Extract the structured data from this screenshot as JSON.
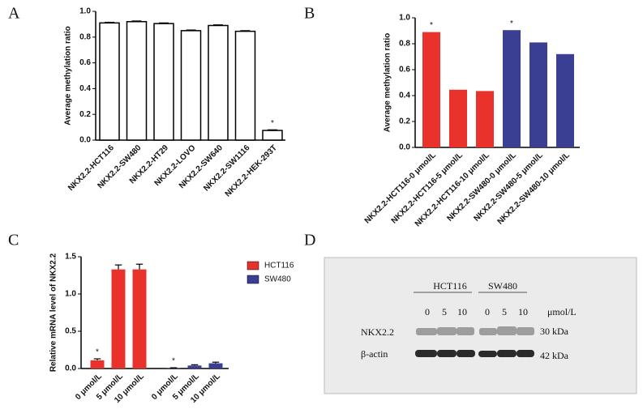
{
  "chart_data": [
    {
      "type": "bar",
      "panel": "A",
      "ylabel": "Average methylation ratio",
      "categories": [
        "NKX2.2-HCT116",
        "NKX2.2-SW480",
        "NKX2.2-HT29",
        "NKX2.2-LOVO",
        "NKX2.2-SW640",
        "NKX2.2-SW1116",
        "NKX2.2-HEK-293T"
      ],
      "values": [
        0.91,
        0.92,
        0.905,
        0.85,
        0.89,
        0.845,
        0.075
      ],
      "errors": [
        0.005,
        0.005,
        0.005,
        0.005,
        0.005,
        0.005,
        0.005
      ],
      "color": "#ffffff",
      "ylim": [
        0,
        1.0
      ],
      "yticks": [
        {
          "value": 0,
          "label": "0.0"
        },
        {
          "value": 0.2,
          "label": "0.2"
        },
        {
          "value": 0.4,
          "label": "0.4"
        },
        {
          "value": 0.6,
          "label": "0.6"
        },
        {
          "value": 0.8,
          "label": "0.8"
        },
        {
          "value": 1.0,
          "label": "1.0"
        }
      ],
      "annotations": [
        {
          "text": "*",
          "category": "NKX2.2-HEK-293T"
        }
      ]
    },
    {
      "type": "bar",
      "panel": "B",
      "ylabel": "Average methylation ratio",
      "categories": [
        "NKX2.2-HCT116-0 μmol/L",
        "NKX2.2-HCT116-5 μmol/L",
        "NKX2.2-HCT116-10 μmol/L",
        "NKX2.2-SW480-0 μmol/L",
        "NKX2.2-SW480-5 μmol/L",
        "NKX2.2-SW480-10 μmol/L"
      ],
      "values": [
        0.89,
        0.445,
        0.435,
        0.905,
        0.81,
        0.72
      ],
      "colors": [
        "#e8322b",
        "#e8322b",
        "#e8322b",
        "#3a3f94",
        "#3a3f94",
        "#3a3f94"
      ],
      "ylim": [
        0,
        1.0
      ],
      "yticks": [
        {
          "value": 0,
          "label": "0.0"
        },
        {
          "value": 0.2,
          "label": "0.2"
        },
        {
          "value": 0.4,
          "label": "0.4"
        },
        {
          "value": 0.6,
          "label": "0.6"
        },
        {
          "value": 0.8,
          "label": "0.8"
        },
        {
          "value": 1.0,
          "label": "1.0"
        }
      ],
      "annotations": [
        {
          "text": "*",
          "category": "NKX2.2-HCT116-0 μmol/L"
        },
        {
          "text": "*",
          "category": "NKX2.2-SW480-0 μmol/L"
        }
      ]
    },
    {
      "type": "bar",
      "panel": "C",
      "ylabel": "Relative mRNA level of NKX2.2",
      "categories": [
        "0 μmol/L",
        "5 μmol/L",
        "10 μmol/L"
      ],
      "series": [
        {
          "name": "HCT116",
          "color": "#e8322b",
          "values": [
            0.11,
            1.33,
            1.33
          ],
          "errors": [
            0.02,
            0.06,
            0.07
          ]
        },
        {
          "name": "SW480",
          "color": "#3a3f94",
          "values": [
            0.005,
            0.04,
            0.07
          ],
          "errors": [
            0.005,
            0.01,
            0.015
          ]
        }
      ],
      "ylim": [
        0,
        1.5
      ],
      "yticks": [
        {
          "value": 0,
          "label": "0.0"
        },
        {
          "value": 0.5,
          "label": "0.5"
        },
        {
          "value": 1.0,
          "label": "1.0"
        },
        {
          "value": 1.5,
          "label": "1.5"
        }
      ],
      "legend": "right",
      "annotations": [
        {
          "text": "*",
          "series": "HCT116",
          "category": "0 μmol/L"
        },
        {
          "text": "*",
          "series": "SW480",
          "category": "0 μmol/L"
        }
      ]
    }
  ],
  "blot": {
    "panel": "D",
    "groups": [
      "HCT116",
      "SW480"
    ],
    "lanes": [
      "0",
      "5",
      "10",
      "0",
      "5",
      "10"
    ],
    "unit": "μmol/L",
    "rows": [
      "NKX2.2",
      "β-actin"
    ],
    "sizes": [
      "30 kDa",
      "42 kDa"
    ]
  }
}
